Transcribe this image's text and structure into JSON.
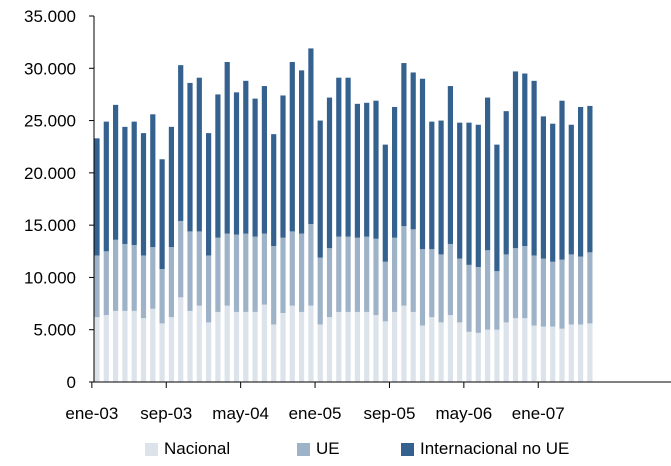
{
  "chart_data": {
    "type": "bar",
    "stacked": true,
    "title": "",
    "xlabel": "",
    "ylabel": "",
    "ylim": [
      0,
      35000
    ],
    "ytick_labels": [
      "0",
      "5.000",
      "10.000",
      "15.000",
      "20.000",
      "25.000",
      "30.000",
      "35.000"
    ],
    "ytick_values": [
      0,
      5000,
      10000,
      15000,
      20000,
      25000,
      30000,
      35000
    ],
    "xtick_labels": [
      "ene-03",
      "sep-03",
      "may-04",
      "ene-05",
      "sep-05",
      "may-06",
      "ene-07"
    ],
    "xtick_index": [
      0,
      8,
      16,
      24,
      32,
      40,
      48
    ],
    "grid": false,
    "legend_position": "bottom",
    "categories": [
      "ene-03",
      "feb-03",
      "mar-03",
      "abr-03",
      "may-03",
      "jun-03",
      "jul-03",
      "ago-03",
      "sep-03",
      "oct-03",
      "nov-03",
      "dic-03",
      "ene-04",
      "feb-04",
      "mar-04",
      "abr-04",
      "may-04",
      "jun-04",
      "jul-04",
      "ago-04",
      "sep-04",
      "oct-04",
      "nov-04",
      "dic-04",
      "ene-05",
      "feb-05",
      "mar-05",
      "abr-05",
      "may-05",
      "jun-05",
      "jul-05",
      "ago-05",
      "sep-05",
      "oct-05",
      "nov-05",
      "dic-05",
      "ene-06",
      "feb-06",
      "mar-06",
      "abr-06",
      "may-06",
      "jun-06",
      "jul-06",
      "ago-06",
      "sep-06",
      "oct-06",
      "nov-06",
      "dic-06",
      "ene-07",
      "feb-07",
      "mar-07",
      "abr-07",
      "may-07",
      "jun-07"
    ],
    "series": [
      {
        "name": "Nacional",
        "color": "#dde3ea",
        "values": [
          6200,
          6400,
          6800,
          6800,
          6800,
          6100,
          7000,
          5600,
          6200,
          8100,
          6800,
          7300,
          5700,
          6700,
          7300,
          6700,
          6700,
          6700,
          7400,
          5500,
          6600,
          7300,
          6700,
          7300,
          5500,
          6200,
          6700,
          6700,
          6700,
          6700,
          6400,
          5800,
          6700,
          7300,
          6700,
          5400,
          6200,
          5700,
          6400,
          5700,
          4800,
          4700,
          5000,
          5000,
          5700,
          6100,
          6100,
          5400,
          5300,
          5300,
          5100,
          5500,
          5500,
          5600
        ],
        "tops": [
          12100,
          12500,
          13600,
          13200,
          13100,
          12100,
          12900,
          10800,
          12900,
          15400,
          14400,
          14400,
          12100,
          13800,
          14200,
          14100,
          14200,
          13900,
          14200,
          13000,
          13800,
          14400,
          14200,
          15100,
          11900,
          12800,
          13900,
          13900,
          13800,
          13900,
          13700,
          11500,
          13800,
          14900,
          14600,
          12700,
          12700,
          12200,
          13200,
          11800,
          11200,
          11000,
          12600,
          10600,
          12200,
          12800,
          13000,
          12100,
          11800,
          11500,
          11700,
          12200,
          12000,
          12400
        ]
      },
      {
        "name": "UE",
        "color": "#9fb3c8",
        "values": [
          5900,
          6100,
          6800,
          6400,
          6300,
          6000,
          5900,
          5200,
          6700,
          7300,
          7600,
          7100,
          6400,
          7100,
          6900,
          7400,
          7500,
          7200,
          6800,
          7500,
          7200,
          7100,
          7500,
          7800,
          6400,
          6600,
          7200,
          7200,
          7100,
          7200,
          7300,
          5700,
          7100,
          7600,
          7900,
          7300,
          6500,
          6500,
          6800,
          6100,
          6400,
          6300,
          7600,
          5600,
          6500,
          6700,
          6900,
          6700,
          6500,
          6200,
          6600,
          6700,
          6500,
          6800
        ]
      },
      {
        "name": "Internacional no UE",
        "color": "#35618e",
        "values": [
          11200,
          12400,
          12900,
          11200,
          11800,
          11700,
          12700,
          10500,
          11500,
          14900,
          14200,
          14700,
          11700,
          13700,
          16400,
          13600,
          14600,
          13200,
          14100,
          10700,
          13600,
          16200,
          15600,
          16800,
          13100,
          14400,
          15200,
          15200,
          12800,
          12800,
          13200,
          11200,
          12500,
          15600,
          15000,
          16300,
          12200,
          12800,
          15100,
          13000,
          13600,
          13600,
          14600,
          12100,
          13700,
          16900,
          16500,
          16700,
          13600,
          13200,
          15200,
          12400,
          14300,
          14000
        ]
      }
    ],
    "totals": [
      23300,
      24900,
      26500,
      24400,
      24900,
      23800,
      25600,
      21300,
      24400,
      30300,
      28600,
      29100,
      23800,
      27500,
      30600,
      27700,
      28800,
      27100,
      28300,
      23700,
      27400,
      30600,
      29800,
      31900,
      25000,
      27200,
      29100,
      29100,
      26600,
      26700,
      26900,
      22700,
      26300,
      30500,
      29600,
      29000,
      24900,
      25000,
      28300,
      24800,
      24800,
      24600,
      27200,
      22700,
      25900,
      29700,
      29500,
      28800,
      25400,
      24700,
      26900,
      24600,
      26300,
      26400
    ]
  }
}
